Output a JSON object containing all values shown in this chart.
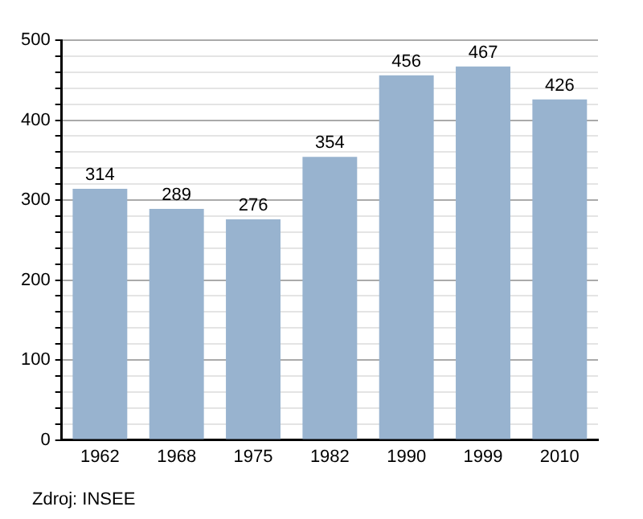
{
  "chart_data": {
    "type": "bar",
    "categories": [
      "1962",
      "1968",
      "1975",
      "1982",
      "1990",
      "1999",
      "2010"
    ],
    "values": [
      314,
      289,
      276,
      354,
      456,
      467,
      426
    ],
    "color": "#98b3cf",
    "data_labels": true,
    "ylim": [
      0,
      500
    ],
    "yticks": [
      0,
      {
        "value": 20,
        "label": null
      },
      {
        "value": 40,
        "label": null
      },
      {
        "value": 60,
        "label": null
      },
      {
        "value": 80,
        "label": null
      },
      100,
      {
        "value": 120,
        "label": null
      },
      {
        "value": 140,
        "label": null
      },
      {
        "value": 160,
        "label": null
      },
      {
        "value": 180,
        "label": null
      },
      200,
      {
        "value": 220,
        "label": null
      },
      {
        "value": 240,
        "label": null
      },
      {
        "value": 260,
        "label": null
      },
      {
        "value": 280,
        "label": null
      },
      300,
      {
        "value": 320,
        "label": null
      },
      {
        "value": 340,
        "label": null
      },
      {
        "value": 360,
        "label": null
      },
      {
        "value": 380,
        "label": null
      },
      400,
      {
        "value": 420,
        "label": null
      },
      {
        "value": 440,
        "label": null
      },
      {
        "value": 460,
        "label": null
      },
      {
        "value": 480,
        "label": null
      },
      500
    ],
    "grid": "y",
    "legend": false,
    "annotations": [
      "Zdroj: INSEE"
    ]
  }
}
